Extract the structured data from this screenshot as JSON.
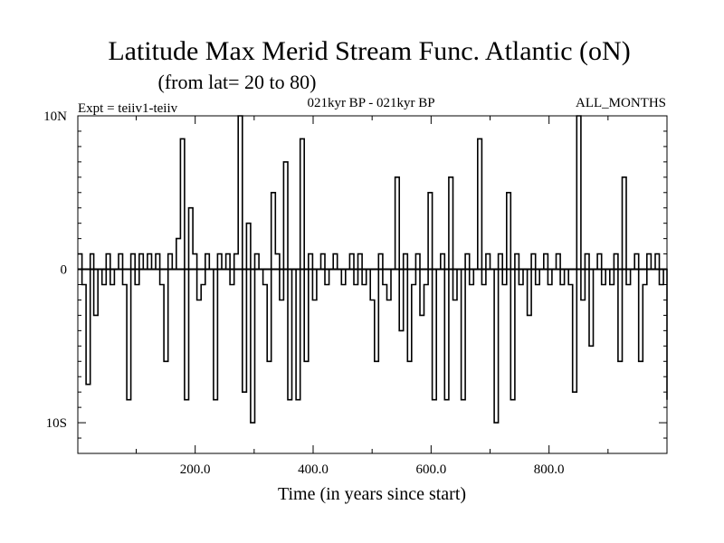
{
  "chart_data": {
    "type": "line",
    "title": "Latitude Max Merid Stream Func. Atlantic (oN)",
    "subtitle": "(from lat= 20 to 80)",
    "left_note": "Expt = teiiv1-teiiv",
    "center_note": "021kyr BP - 021kyr BP",
    "right_note": "ALL_MONTHS",
    "xlabel": "Time (in years since start)",
    "ylabel": "",
    "xlim": [
      1,
      1000
    ],
    "ylim": [
      -12,
      10
    ],
    "xticks": [
      200,
      400,
      600,
      800
    ],
    "xtick_labels": [
      "200.0",
      "400.0",
      "600.0",
      "800.0"
    ],
    "yticks": [
      10,
      0,
      -10
    ],
    "ytick_labels": [
      "10N",
      "0",
      "10S"
    ],
    "grid": false,
    "line_color": "#000000",
    "x": [
      1,
      8,
      15,
      22,
      28,
      35,
      42,
      49,
      56,
      63,
      70,
      77,
      84,
      91,
      98,
      105,
      112,
      119,
      126,
      133,
      140,
      147,
      154,
      161,
      168,
      175,
      182,
      189,
      196,
      203,
      210,
      217,
      224,
      231,
      238,
      245,
      252,
      259,
      266,
      273,
      280,
      287,
      294,
      301,
      308,
      315,
      322,
      329,
      336,
      343,
      350,
      357,
      364,
      371,
      378,
      385,
      392,
      399,
      406,
      413,
      420,
      427,
      434,
      441,
      448,
      455,
      462,
      469,
      476,
      483,
      490,
      497,
      504,
      511,
      518,
      525,
      532,
      539,
      546,
      553,
      560,
      567,
      574,
      581,
      588,
      595,
      602,
      609,
      616,
      623,
      630,
      637,
      644,
      651,
      658,
      665,
      672,
      679,
      686,
      693,
      700,
      707,
      714,
      721,
      728,
      735,
      742,
      749,
      756,
      763,
      770,
      777,
      784,
      791,
      798,
      805,
      812,
      819,
      826,
      833,
      840,
      847,
      854,
      861,
      868,
      875,
      882,
      889,
      896,
      903,
      910,
      917,
      924,
      931,
      938,
      945,
      952,
      959,
      966,
      973,
      980,
      987,
      994,
      1000
    ],
    "y": [
      1,
      -1,
      -7.5,
      1,
      -3,
      0,
      -1,
      1,
      -1,
      0,
      1,
      -1,
      -8.5,
      1,
      -1,
      1,
      0,
      1,
      0,
      1,
      -1,
      -6,
      1,
      0,
      2,
      8.5,
      -8.5,
      4,
      1,
      -2,
      -1,
      1,
      0,
      -8.5,
      1,
      0,
      1,
      -1,
      1,
      10,
      -8,
      3,
      -10,
      1,
      0,
      -1,
      -6,
      5,
      1,
      -2,
      7,
      -8.5,
      0,
      -8.5,
      8.5,
      -6,
      1,
      -2,
      0,
      1,
      -1,
      0,
      1,
      0,
      -1,
      0,
      1,
      -1,
      1,
      -1,
      0,
      -2,
      -6,
      1,
      -1,
      -2,
      0,
      6,
      -4,
      1,
      -6,
      -1,
      1,
      -3,
      -1,
      5,
      -8.5,
      0,
      1,
      -8.5,
      6,
      -2,
      0,
      -8.5,
      1,
      -1,
      0,
      8.5,
      -1,
      1,
      0,
      -10,
      1,
      -1,
      5,
      -8.5,
      1,
      -1,
      0,
      -3,
      1,
      -1,
      0,
      1,
      -1,
      0,
      1,
      -1,
      0,
      -1,
      -8,
      10,
      -2,
      1,
      -5,
      0,
      1,
      -1,
      0,
      -1,
      1,
      -6,
      6,
      -1,
      0,
      1,
      -6,
      -1,
      1,
      0,
      1,
      -1,
      0,
      -8.5
    ]
  }
}
